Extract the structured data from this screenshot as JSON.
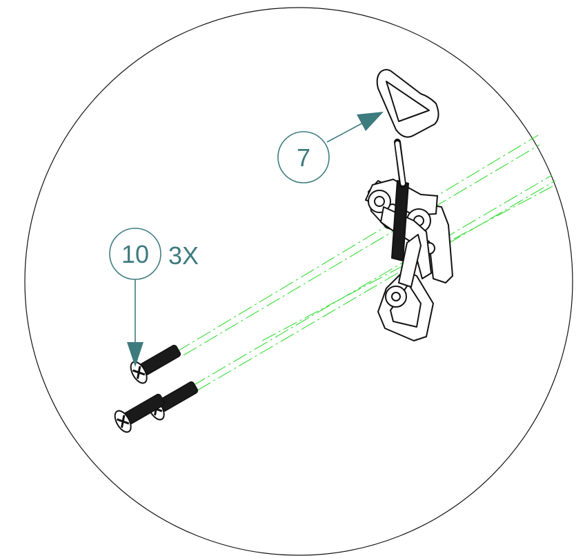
{
  "callouts": [
    {
      "id": "callout-7",
      "number": "7",
      "quantity": ""
    },
    {
      "id": "callout-10",
      "number": "10",
      "quantity": "3X"
    }
  ],
  "colors": {
    "callout": "#3e7b7f",
    "centerline": "#33dd33",
    "outline": "#111111",
    "part_fill": "#ffffff",
    "screw_fill": "#1a1a1a"
  },
  "parts": {
    "latch": "toggle-latch",
    "screws": "flat-head-screws"
  }
}
